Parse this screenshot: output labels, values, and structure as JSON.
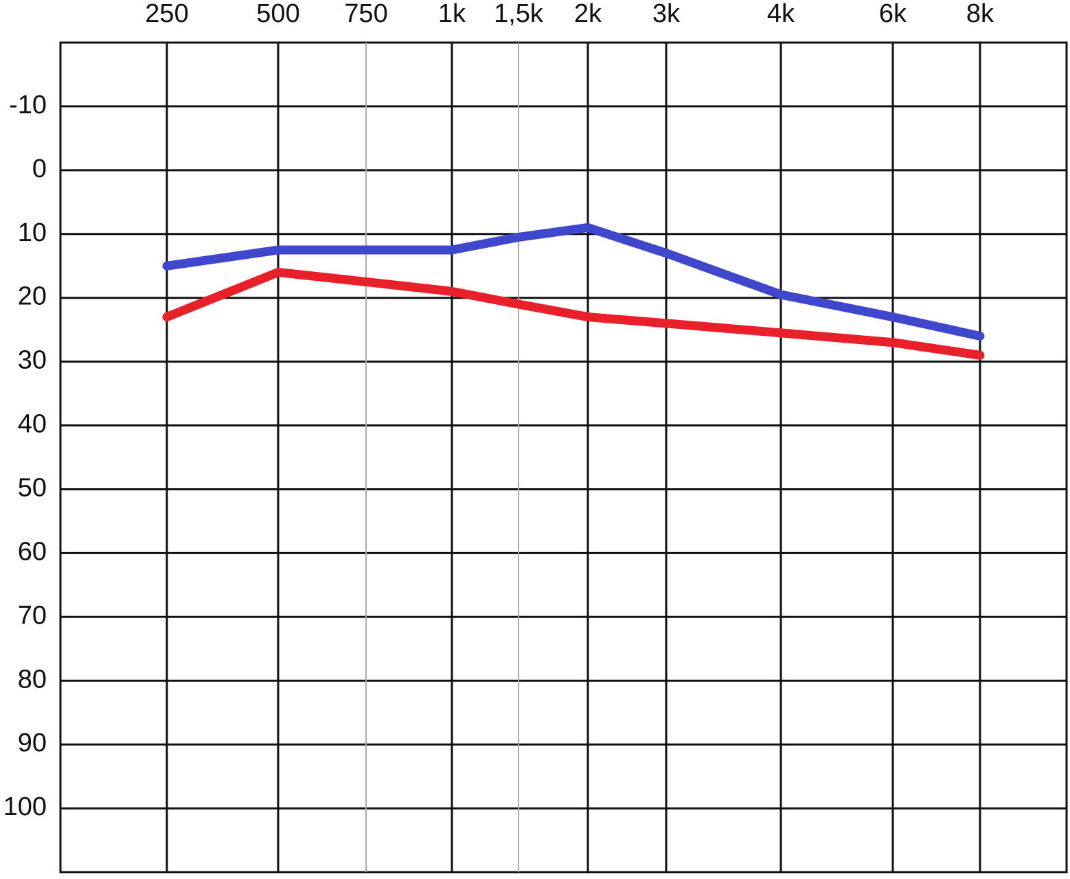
{
  "chart_data": {
    "type": "line",
    "categories": [
      "250",
      "500",
      "750",
      "1k",
      "1,5k",
      "2k",
      "3k",
      "4k",
      "6k",
      "8k"
    ],
    "minor_categories": [
      "750",
      "1,5k"
    ],
    "series": [
      {
        "color": "#3f48cc",
        "values": [
          15,
          12.5,
          12.5,
          12.5,
          10.5,
          9,
          13,
          19.5,
          23,
          26
        ]
      },
      {
        "color": "#e8202a",
        "values": [
          23,
          16,
          17.5,
          19,
          21,
          23,
          24,
          25.5,
          27,
          29
        ]
      }
    ],
    "ylim": [
      -20,
      110
    ],
    "y_inverted": true,
    "yticks": [
      -10,
      0,
      10,
      20,
      30,
      40,
      50,
      60,
      70,
      80,
      90,
      100
    ],
    "grid": true
  }
}
